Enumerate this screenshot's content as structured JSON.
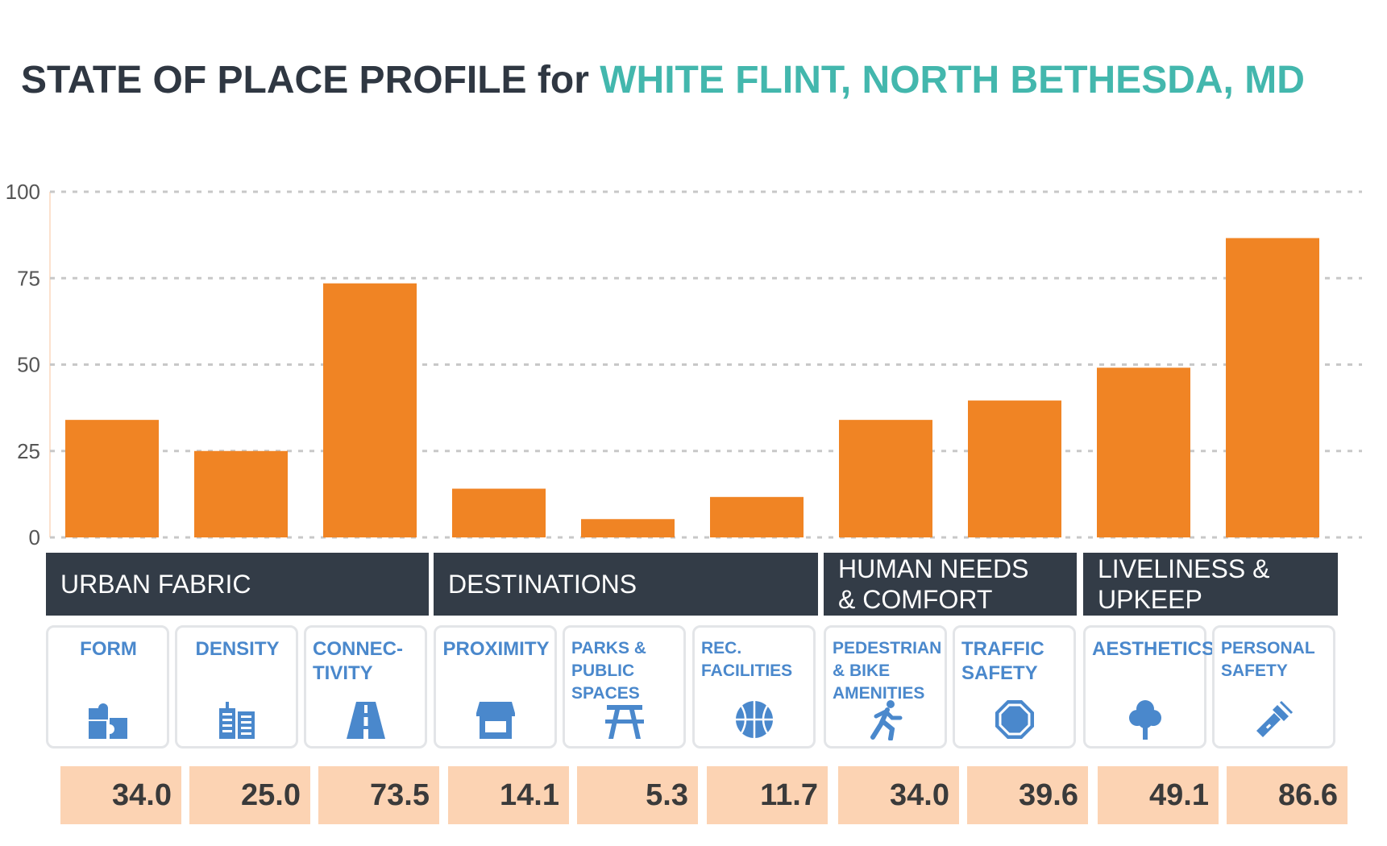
{
  "title": {
    "prefix": "STATE OF PLACE PROFILE for",
    "location": "WHITE FLINT, NORTH BETHESDA, MD",
    "location_color": "#43b7ad"
  },
  "colors": {
    "bar": "#f08424",
    "category_bg": "#333c47",
    "card_label": "#4a88cc",
    "value_bg": "#fcd3b3"
  },
  "categories": [
    {
      "label": "URBAN FABRIC"
    },
    {
      "label": "DESTINATIONS"
    },
    {
      "label": "HUMAN NEEDS\n& COMFORT"
    },
    {
      "label": "LIVELINESS &\nUPKEEP"
    }
  ],
  "dimensions": [
    {
      "label": "FORM",
      "icon": "puzzle-icon",
      "value": "34.0"
    },
    {
      "label": "DENSITY",
      "icon": "buildings-icon",
      "value": "25.0"
    },
    {
      "label": "CONNEC-\nTIVITY",
      "icon": "road-icon",
      "value": "73.5"
    },
    {
      "label": "PROXIMITY",
      "icon": "storefront-icon",
      "value": "14.1"
    },
    {
      "label": "PARKS &\nPUBLIC\nSPACES",
      "icon": "picnic-table-icon",
      "value": "5.3"
    },
    {
      "label": "REC.\nFACILITIES",
      "icon": "basketball-icon",
      "value": "11.7"
    },
    {
      "label": "PEDESTRIAN\n& BIKE\nAMENITIES",
      "icon": "running-person-icon",
      "value": "34.0"
    },
    {
      "label": "TRAFFIC\nSAFETY",
      "icon": "stop-sign-icon",
      "value": "39.6"
    },
    {
      "label": "AESTHETICS",
      "icon": "tree-icon",
      "value": "49.1"
    },
    {
      "label": "PERSONAL\nSAFETY",
      "icon": "flashlight-icon",
      "value": "86.6"
    }
  ],
  "chart_data": {
    "type": "bar",
    "categories": [
      "FORM",
      "DENSITY",
      "CONNEC-TIVITY",
      "PROXIMITY",
      "PARKS & PUBLIC SPACES",
      "REC. FACILITIES",
      "PEDESTRIAN & BIKE AMENITIES",
      "TRAFFIC SAFETY",
      "AESTHETICS",
      "PERSONAL SAFETY"
    ],
    "values": [
      34.0,
      25.0,
      73.5,
      14.1,
      5.3,
      11.7,
      34.0,
      39.6,
      49.1,
      86.6
    ],
    "groups": [
      "URBAN FABRIC",
      "DESTINATIONS",
      "HUMAN NEEDS & COMFORT",
      "LIVELINESS & UPKEEP"
    ],
    "title": "STATE OF PLACE PROFILE for WHITE FLINT, NORTH BETHESDA, MD",
    "xlabel": "",
    "ylabel": "",
    "ylim": [
      0,
      100
    ],
    "yticks": [
      "0",
      "25",
      "50",
      "75",
      "100"
    ],
    "grid": true,
    "bar_color": "#f08424"
  }
}
